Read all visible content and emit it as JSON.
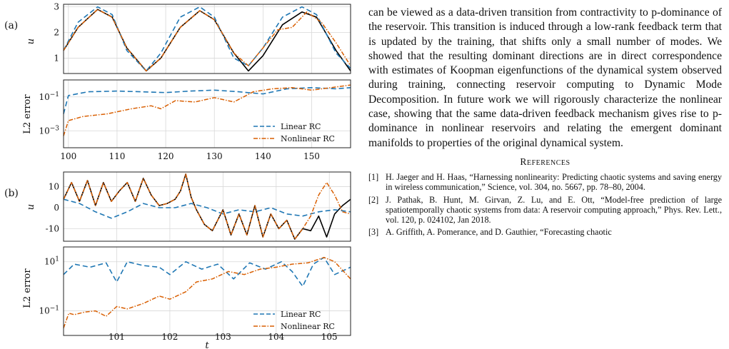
{
  "figure": {
    "panels": [
      {
        "label": "(a)",
        "top_ylabel": "u0",
        "bottom_ylabel": "L2 error",
        "x_ticks": [
          "100",
          "110",
          "120",
          "130",
          "140",
          "150"
        ],
        "top_y_ticks": [
          "1",
          "2",
          "3"
        ],
        "bottom_y_ticks": [
          "10^-1",
          "10^-3"
        ],
        "legend": [
          "Linear RC",
          "Nonlinear RC"
        ]
      },
      {
        "label": "(b)",
        "top_ylabel": "u0",
        "bottom_ylabel": "L2 error",
        "xlabel": "t",
        "x_ticks": [
          "101",
          "102",
          "103",
          "104",
          "105"
        ],
        "top_y_ticks": [
          "10",
          "0",
          "-10"
        ],
        "bottom_y_ticks": [
          "10^1",
          "10^-1"
        ],
        "legend": [
          "Linear RC",
          "Nonlinear RC"
        ]
      }
    ],
    "colors": {
      "truth": "#000000",
      "linear": "#1f77b4",
      "nonlinear": "#d95f02"
    }
  },
  "chart_data": [
    {
      "type": "line",
      "title": "",
      "xlabel": "",
      "ylabel": "u0",
      "xlim": [
        99,
        158
      ],
      "ylim": [
        0.4,
        3.1
      ],
      "series": [
        {
          "x": [
            99,
            102,
            106,
            109,
            112,
            116,
            119,
            123,
            127,
            130,
            134,
            137,
            140,
            144,
            148,
            151,
            155,
            158
          ],
          "values": [
            1.3,
            2.2,
            2.9,
            2.6,
            1.4,
            0.5,
            1.0,
            2.2,
            2.85,
            2.5,
            1.2,
            0.5,
            1.1,
            2.3,
            2.8,
            2.6,
            1.3,
            0.5
          ]
        },
        {
          "name": "Linear RC",
          "x": [
            99,
            102,
            106,
            109,
            112,
            116,
            119,
            123,
            127,
            130,
            134,
            137,
            140,
            144,
            148,
            151,
            155,
            158
          ],
          "values": [
            1.3,
            2.4,
            3.0,
            2.7,
            1.3,
            0.5,
            1.2,
            2.6,
            3.0,
            2.6,
            1.0,
            0.7,
            1.4,
            2.6,
            3.0,
            2.7,
            1.2,
            0.6
          ]
        },
        {
          "name": "Nonlinear RC",
          "x": [
            99,
            102,
            106,
            109,
            112,
            116,
            119,
            123,
            127,
            130,
            134,
            137,
            140,
            143,
            146,
            149,
            152,
            155,
            158
          ],
          "values": [
            1.3,
            2.2,
            2.9,
            2.6,
            1.4,
            0.5,
            1.0,
            2.2,
            2.85,
            2.5,
            1.2,
            0.7,
            1.4,
            2.1,
            2.2,
            2.8,
            2.4,
            1.6,
            0.7
          ]
        }
      ]
    },
    {
      "type": "line",
      "title": "",
      "xlabel": "",
      "ylabel": "L2 error",
      "xlim": [
        99,
        158
      ],
      "ylim": [
        0.0001,
        1
      ],
      "log_y": true,
      "series": [
        {
          "name": "Linear RC",
          "x": [
            99,
            100,
            104,
            110,
            115,
            120,
            125,
            130,
            135,
            140,
            145,
            150,
            155,
            158
          ],
          "values": [
            0.01,
            0.12,
            0.2,
            0.22,
            0.2,
            0.18,
            0.22,
            0.25,
            0.2,
            0.15,
            0.3,
            0.35,
            0.3,
            0.35
          ]
        },
        {
          "name": "Nonlinear RC",
          "x": [
            99,
            100,
            103,
            108,
            113,
            117,
            119,
            122,
            126,
            130,
            134,
            138,
            142,
            146,
            150,
            154,
            158
          ],
          "values": [
            0.0005,
            0.004,
            0.007,
            0.01,
            0.02,
            0.03,
            0.02,
            0.06,
            0.05,
            0.09,
            0.05,
            0.2,
            0.3,
            0.35,
            0.25,
            0.35,
            0.5
          ]
        }
      ]
    },
    {
      "type": "line",
      "title": "",
      "xlabel": "",
      "ylabel": "u0",
      "xlim": [
        100.0,
        105.4
      ],
      "ylim": [
        -16,
        17
      ],
      "series": [
        {
          "x": [
            100.0,
            100.15,
            100.3,
            100.45,
            100.6,
            100.75,
            100.9,
            101.05,
            101.2,
            101.35,
            101.5,
            101.65,
            101.8,
            101.95,
            102.1,
            102.2,
            102.3,
            102.4,
            102.5,
            102.65,
            102.8,
            103.0,
            103.15,
            103.3,
            103.45,
            103.6,
            103.75,
            103.9,
            104.05,
            104.2,
            104.35,
            104.5,
            104.65,
            104.8,
            104.95,
            105.1,
            105.25,
            105.4
          ],
          "values": [
            4,
            12,
            3,
            13,
            1,
            12,
            3,
            8,
            12,
            3,
            14,
            6,
            1,
            2,
            4,
            8,
            16,
            5,
            -1,
            -8,
            -11,
            -1,
            -13,
            -3,
            -13,
            1,
            -14,
            -3,
            -10,
            -6,
            -15,
            -10,
            -11,
            -4,
            -14,
            -3,
            1,
            4
          ]
        },
        {
          "name": "Linear RC",
          "x": [
            100.0,
            100.3,
            100.6,
            100.9,
            101.2,
            101.5,
            101.8,
            102.1,
            102.4,
            102.7,
            103.0,
            103.3,
            103.6,
            103.9,
            104.2,
            104.5,
            104.8,
            105.1,
            105.4
          ],
          "values": [
            4,
            2,
            -2,
            -5,
            -2,
            2,
            0,
            0,
            2,
            0,
            -3,
            -1,
            -2,
            0,
            -3,
            -4,
            -2,
            -1,
            -2
          ]
        },
        {
          "name": "Nonlinear RC",
          "x": [
            100.0,
            100.15,
            100.3,
            100.45,
            100.6,
            100.75,
            100.9,
            101.05,
            101.2,
            101.35,
            101.5,
            101.65,
            101.8,
            101.95,
            102.1,
            102.2,
            102.3,
            102.4,
            102.5,
            102.65,
            102.8,
            103.0,
            103.15,
            103.3,
            103.45,
            103.6,
            103.75,
            103.9,
            104.05,
            104.2,
            104.35,
            104.5,
            104.65,
            104.8,
            104.95,
            105.1,
            105.25,
            105.4
          ],
          "values": [
            4,
            12,
            3,
            13,
            1,
            12,
            3,
            8,
            12,
            3,
            14,
            6,
            1,
            2,
            4,
            8,
            16,
            5,
            -1,
            -8,
            -11,
            -1,
            -13,
            -3,
            -13,
            1,
            -14,
            -3,
            -10,
            -6,
            -15,
            -10,
            -4,
            6,
            12,
            6,
            -2,
            -3
          ]
        }
      ]
    },
    {
      "type": "line",
      "title": "",
      "xlabel": "t",
      "ylabel": "L2 error",
      "xlim": [
        100.0,
        105.4
      ],
      "ylim": [
        0.01,
        40
      ],
      "log_y": true,
      "series": [
        {
          "name": "Linear RC",
          "x": [
            100.0,
            100.2,
            100.5,
            100.8,
            101.0,
            101.2,
            101.5,
            101.8,
            102.0,
            102.3,
            102.6,
            102.9,
            103.2,
            103.5,
            103.8,
            104.1,
            104.3,
            104.5,
            104.7,
            104.9,
            105.1,
            105.4
          ],
          "values": [
            3,
            8,
            6,
            9,
            1.5,
            10,
            7,
            6,
            3,
            10,
            5,
            8,
            2,
            9,
            5,
            10,
            4,
            1,
            8,
            15,
            3,
            6
          ]
        },
        {
          "name": "Nonlinear RC",
          "x": [
            100.0,
            100.1,
            100.2,
            100.4,
            100.6,
            100.8,
            101.0,
            101.2,
            101.5,
            101.8,
            102.0,
            102.3,
            102.5,
            102.8,
            103.1,
            103.4,
            103.7,
            104.0,
            104.3,
            104.6,
            104.9,
            105.1,
            105.4
          ],
          "values": [
            0.02,
            0.08,
            0.07,
            0.09,
            0.1,
            0.06,
            0.15,
            0.12,
            0.2,
            0.4,
            0.3,
            0.6,
            1.5,
            2,
            4,
            3,
            5,
            6,
            8,
            9,
            15,
            10,
            2
          ]
        }
      ]
    }
  ],
  "text": {
    "paragraph": "can be viewed as a data-driven transition from contractivity to p-dominance of the reservoir. This transition is induced through a low-rank feedback term that is updated by the training, that shifts only a small number of modes. We showed that the resulting dominant directions are in direct correspondence with estimates of Koopman eigenfunctions of the dynamical system observed during training, connecting reservoir computing to Dynamic Mode Decomposition. In future work we will rigorously characterize the nonlinear case, showing that the same data-driven feedback mechanism gives rise to p-dominance in nonlinear reservoirs and relating the emergent dominant manifolds to properties of the original dynamical system.",
    "references_heading": "References",
    "refs": [
      {
        "num": "[1]",
        "text": "H. Jaeger and H. Haas, “Harnessing nonlinearity: Predicting chaotic systems and saving energy in wireless communication,” Science, vol. 304, no. 5667, pp. 78–80, 2004."
      },
      {
        "num": "[2]",
        "text": "J. Pathak, B. Hunt, M. Girvan, Z. Lu, and E. Ott, “Model-free prediction of large spatiotemporally chaotic systems from data: A reservoir computing approach,” Phys. Rev. Lett., vol. 120, p. 024102, Jan 2018."
      },
      {
        "num": "[3]",
        "text": "A. Griffith, A. Pomerance, and D. Gauthier, “Forecasting chaotic"
      }
    ]
  }
}
